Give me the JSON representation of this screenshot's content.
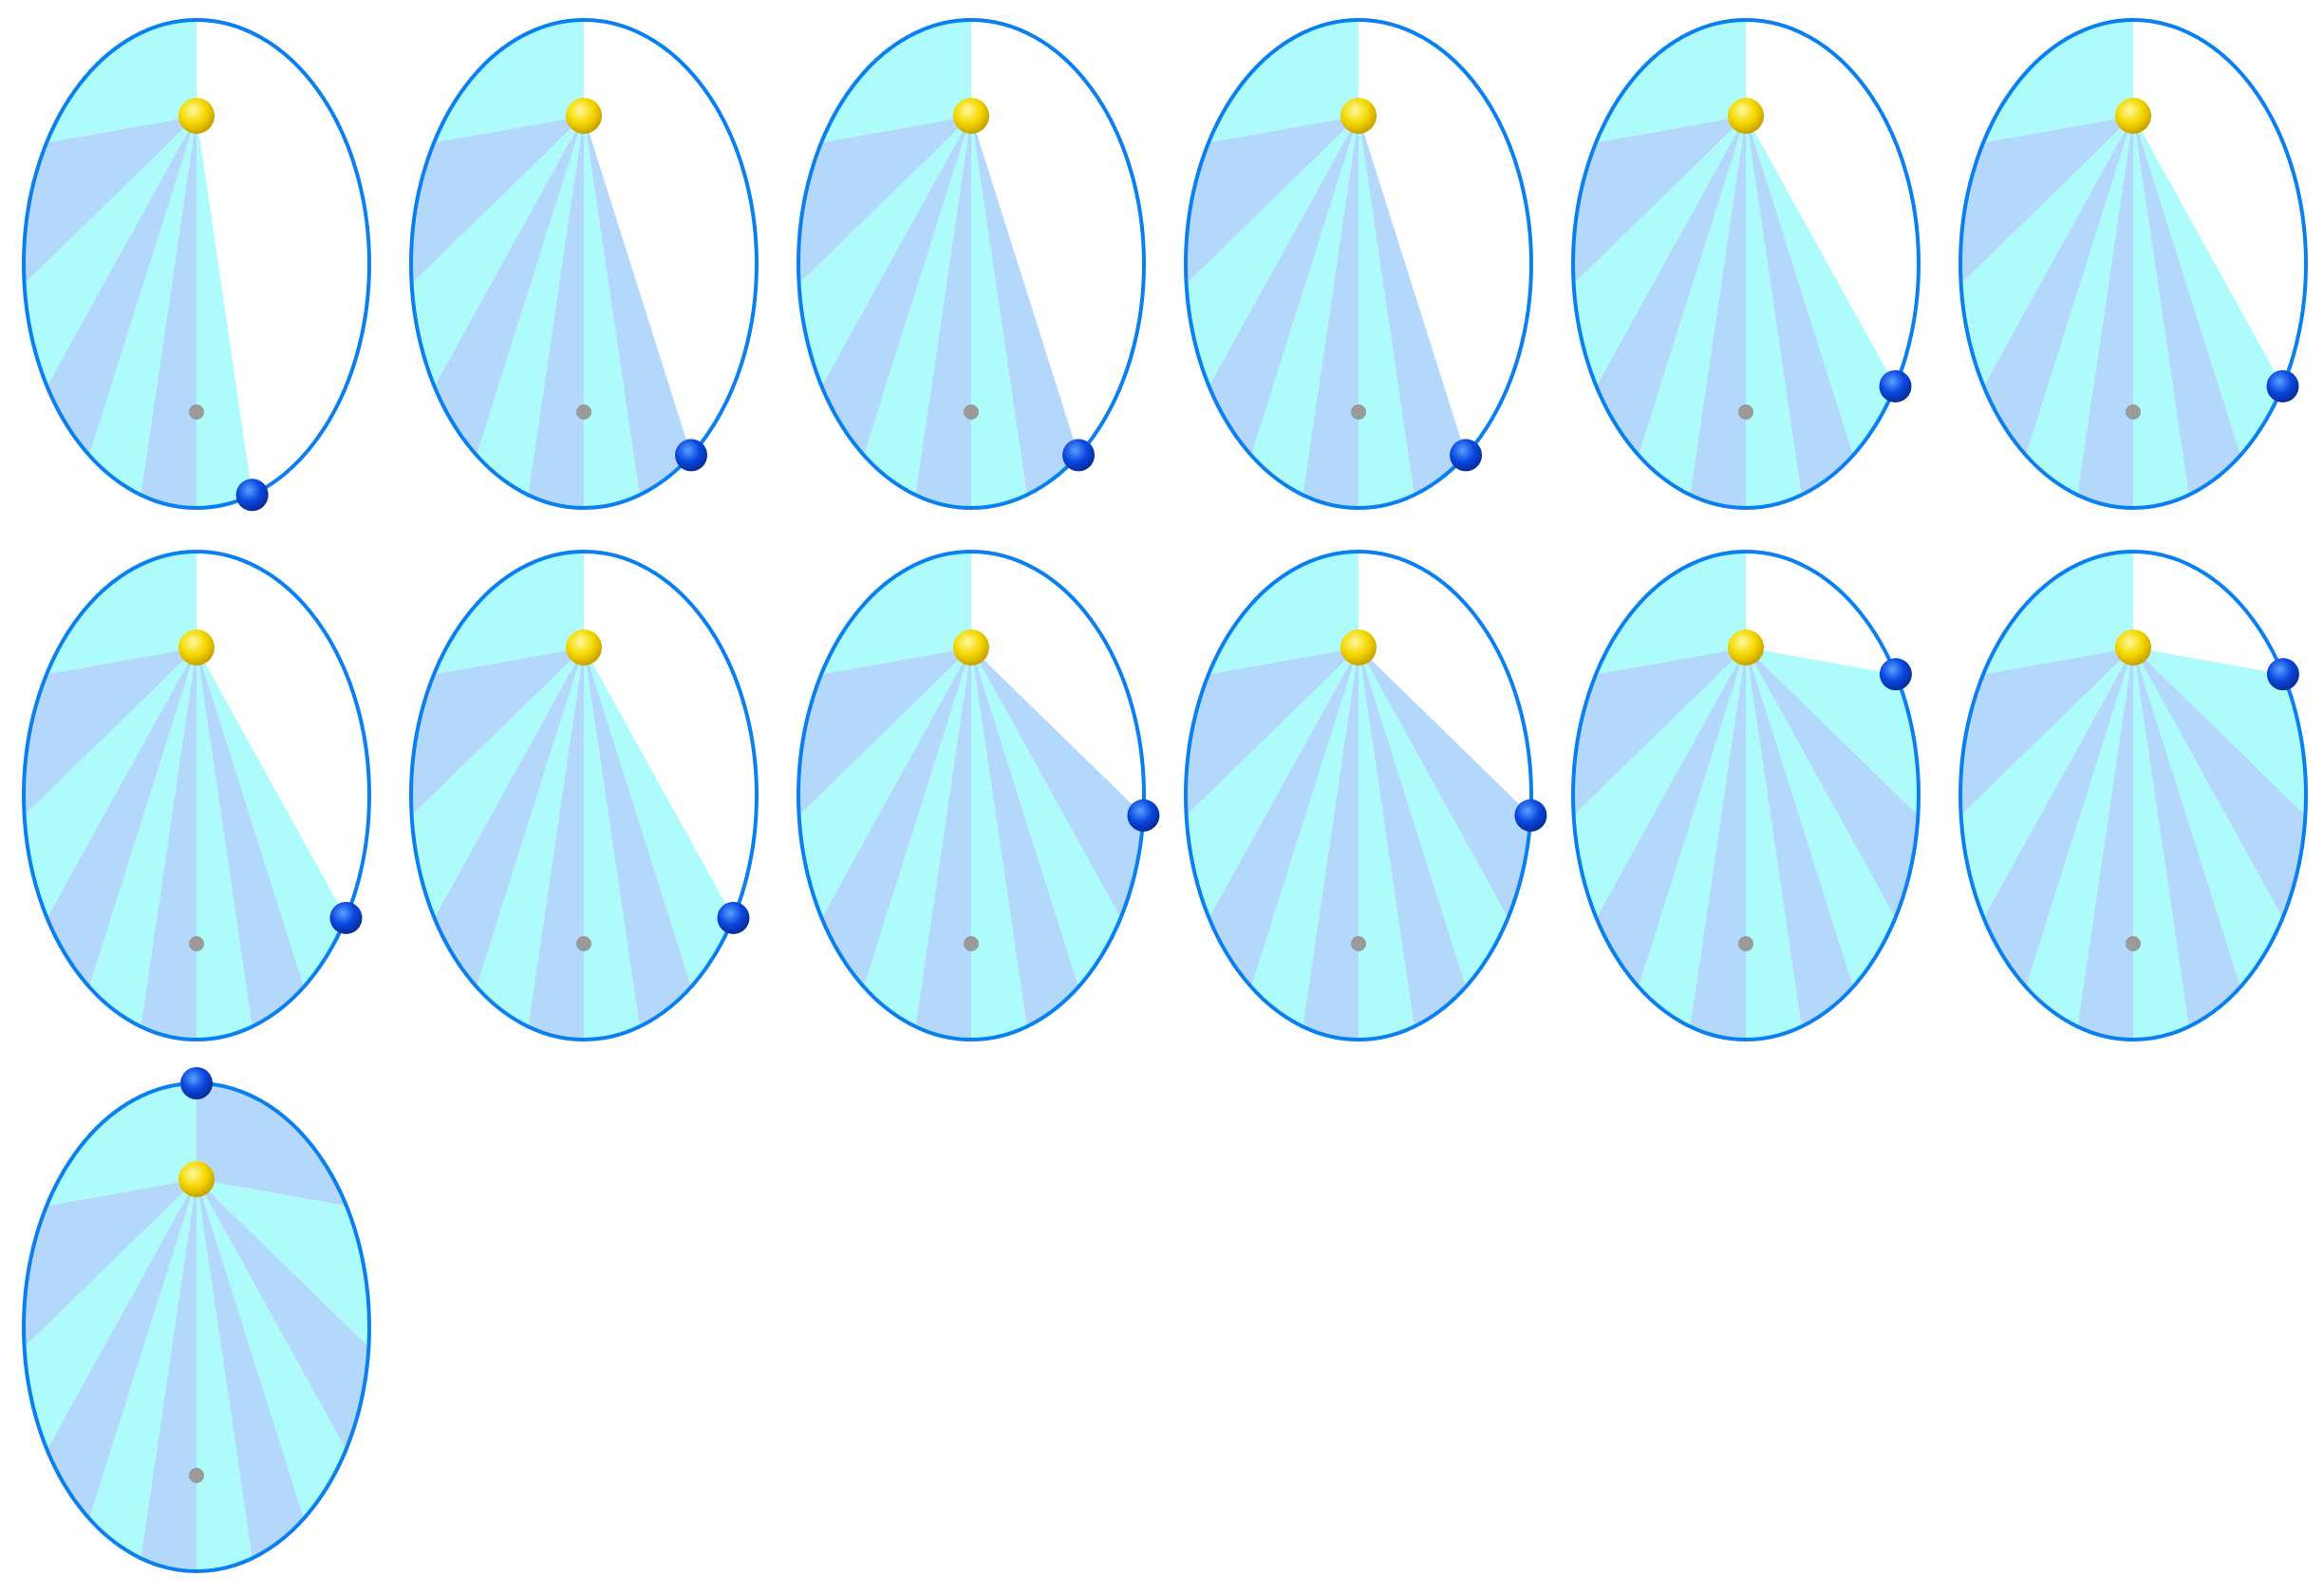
{
  "figure": {
    "type": "kepler-second-law-sequence",
    "frame_count": 13,
    "columns": 6,
    "rows": 3,
    "sector_count": 12,
    "frames_swept_sectors": [
      7,
      8,
      8,
      8,
      9,
      9,
      9,
      9,
      10,
      10,
      11,
      11,
      12
    ]
  },
  "colors": {
    "background": "#ffffff",
    "orbit_stroke": "#0a7ff0",
    "sector_a": "#b4d8fc",
    "sector_b": "#adfcfb",
    "unswept": "#ffffff",
    "sun_light": "#fff7a0",
    "sun_mid": "#f5d800",
    "sun_dark": "#c9a200",
    "planet_light": "#5aa0ff",
    "planet_mid": "#0b48e0",
    "planet_dark": "#062c9a",
    "empty_focus": "#9a9a9a"
  },
  "icons": {
    "sun": "sun-circle-icon",
    "planet": "planet-circle-icon",
    "empty_focus": "focus-dot-icon"
  }
}
